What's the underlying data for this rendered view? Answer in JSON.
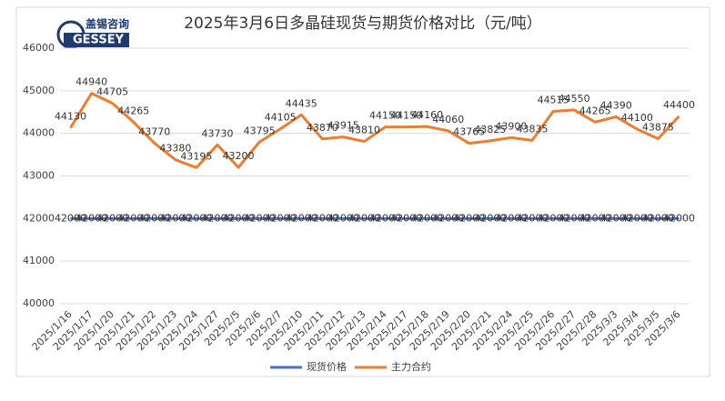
{
  "logo": {
    "name": "盖锡咨询",
    "brand": "GESSEY"
  },
  "chart_data": {
    "type": "line",
    "title": "2025年3月6日多晶硅现货与期货价格对比（元/吨）",
    "categories": [
      "2025/1/16",
      "2025/1/17",
      "2025/1/20",
      "2025/1/21",
      "2025/1/22",
      "2025/1/23",
      "2025/1/24",
      "2025/1/27",
      "2025/2/5",
      "2025/2/6",
      "2025/2/7",
      "2025/2/10",
      "2025/2/11",
      "2025/2/12",
      "2025/2/13",
      "2025/2/14",
      "2025/2/17",
      "2025/2/18",
      "2025/2/19",
      "2025/2/20",
      "2025/2/21",
      "2025/2/24",
      "2025/2/25",
      "2025/2/26",
      "2025/2/27",
      "2025/2/28",
      "2025/3/3",
      "2025/3/4",
      "2025/3/5",
      "2025/3/6"
    ],
    "series": [
      {
        "name": "现货价格",
        "color": "#4472c4",
        "values": [
          42000,
          42000,
          42000,
          42000,
          42000,
          42000,
          42000,
          42000,
          42000,
          42000,
          42000,
          42000,
          42000,
          42000,
          42000,
          42000,
          42000,
          42000,
          42000,
          42000,
          42000,
          42000,
          42000,
          42000,
          42000,
          42000,
          42000,
          42000,
          42000,
          42000
        ]
      },
      {
        "name": "主力合约",
        "color": "#ed7d31",
        "values": [
          44130,
          44940,
          44705,
          44265,
          43770,
          43380,
          43195,
          43730,
          43200,
          43795,
          44105,
          44435,
          43870,
          43915,
          43810,
          44150,
          44150,
          44160,
          44060,
          43765,
          43825,
          43900,
          43835,
          44515,
          44550,
          44265,
          44390,
          44100,
          43875,
          44400
        ]
      }
    ],
    "ylim": [
      40000,
      46000
    ],
    "yticks": [
      40000,
      41000,
      42000,
      43000,
      44000,
      45000,
      46000
    ],
    "grid": true,
    "legend": "bottom"
  }
}
